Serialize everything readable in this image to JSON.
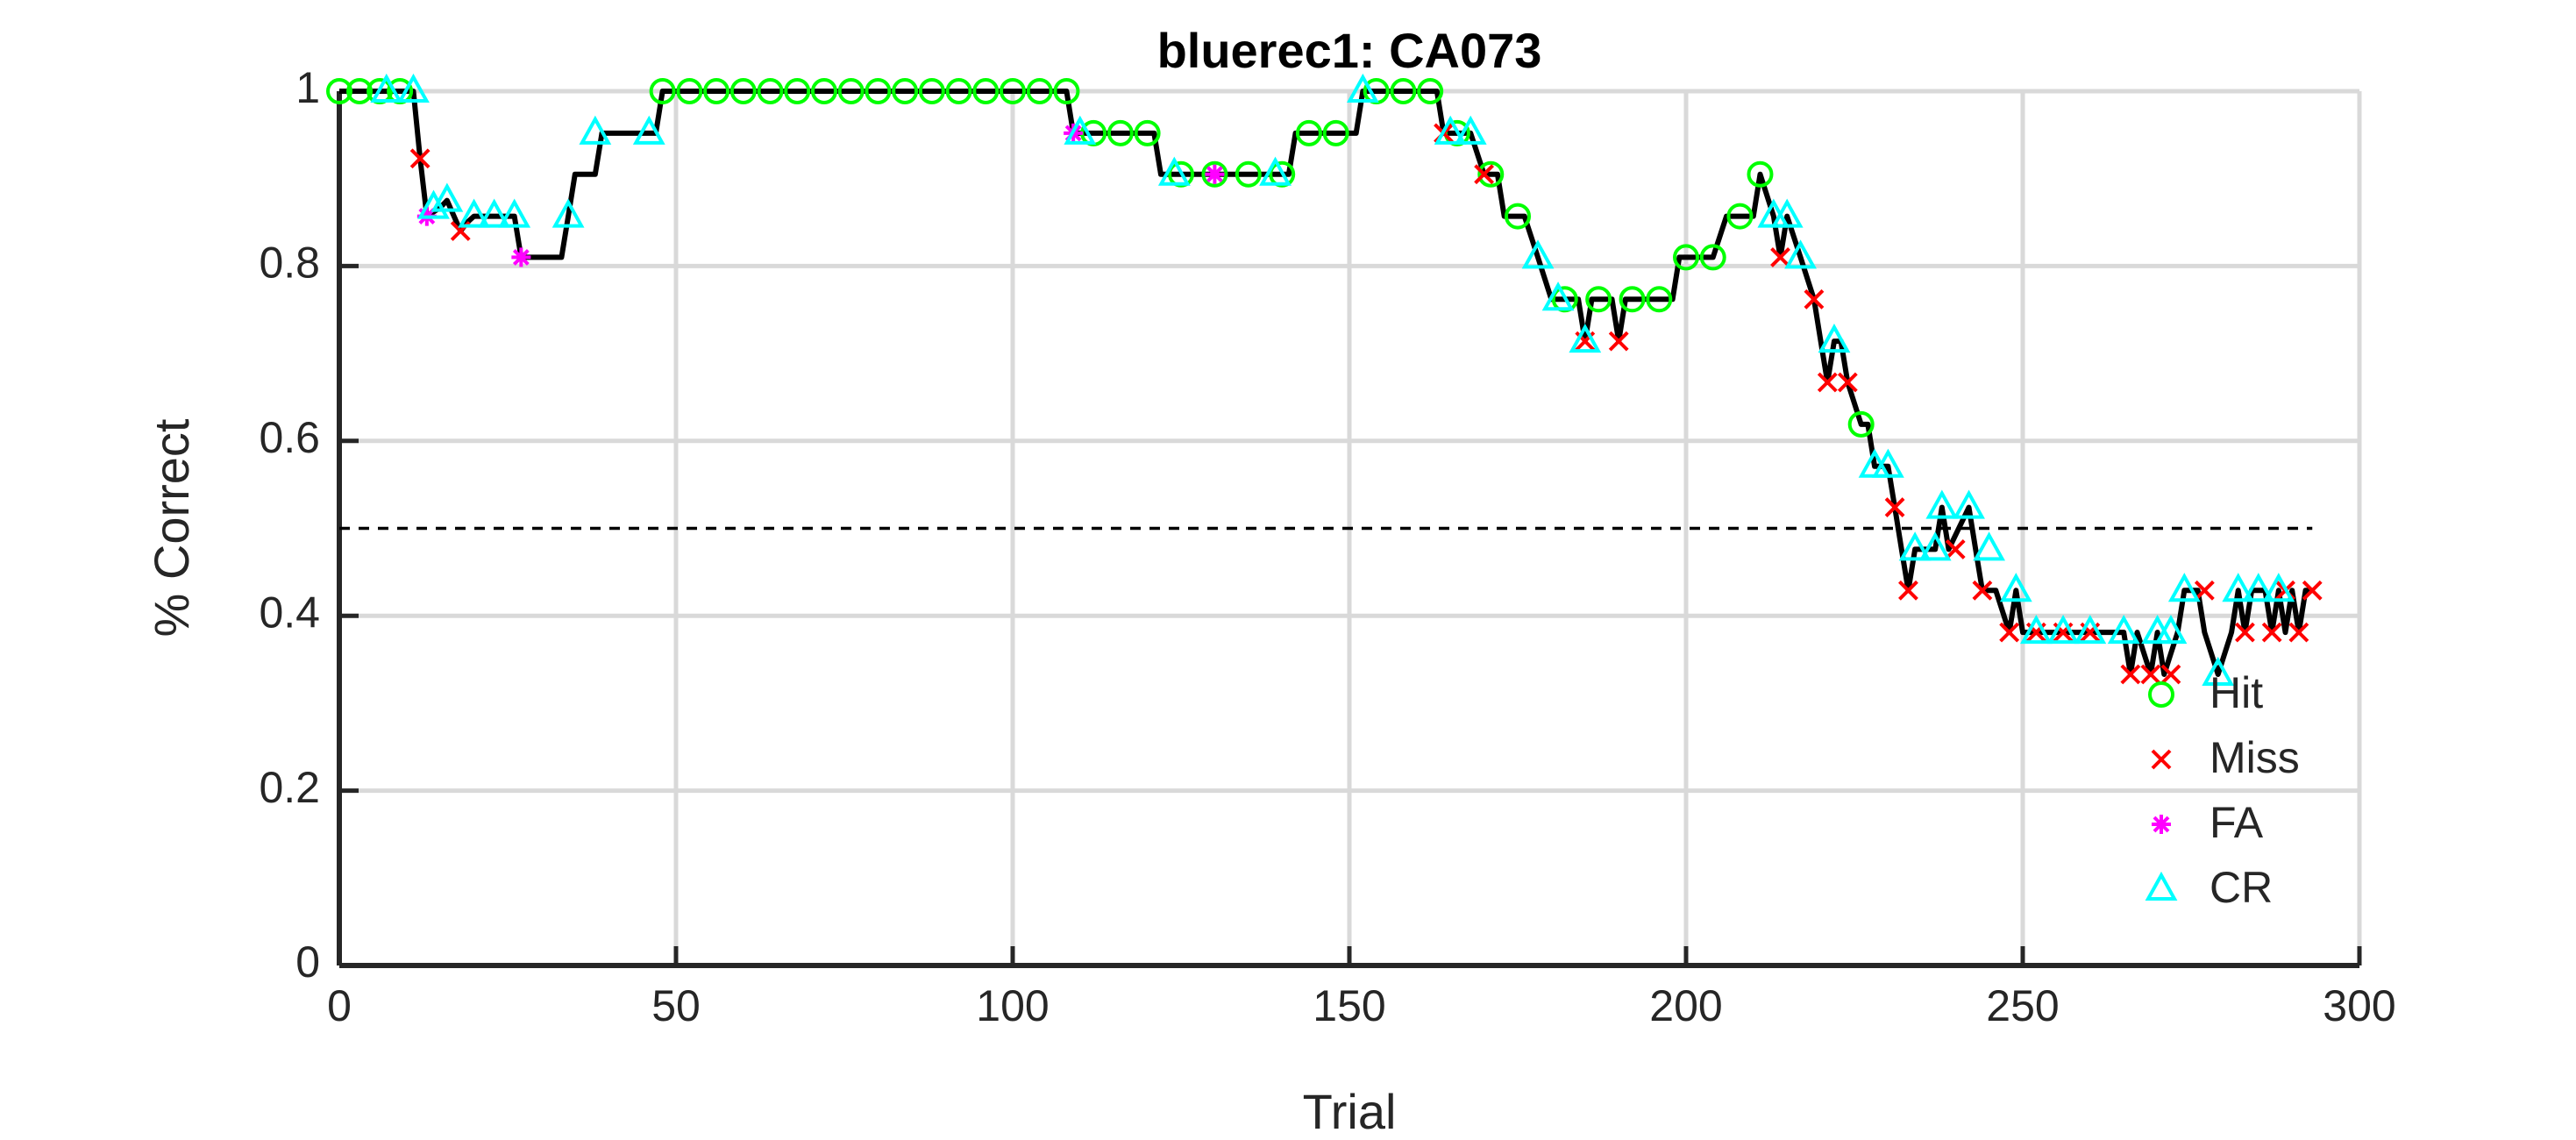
{
  "chart_data": {
    "type": "line",
    "title": "bluerec1: CA073",
    "xlabel": "Trial",
    "ylabel": "% Correct",
    "xlim": [
      0,
      300
    ],
    "xticks": [
      0,
      50,
      100,
      150,
      200,
      250,
      300
    ],
    "ylim": [
      0,
      1
    ],
    "yticks": [
      0,
      0.2,
      0.4,
      0.6,
      0.8,
      1
    ],
    "grid": true,
    "legend": "southeast",
    "reference_line": 0.5,
    "series": [
      {
        "color": "#000000",
        "marker": "none",
        "x": [
          0,
          11,
          12,
          13,
          15,
          16,
          18,
          19,
          20,
          26,
          27,
          33,
          34,
          35,
          38,
          39,
          47,
          48,
          108,
          109,
          121,
          122,
          141,
          142,
          151,
          152,
          163,
          164,
          168,
          170,
          172,
          173,
          176,
          178,
          180,
          184,
          185,
          186,
          189,
          190,
          191,
          198,
          199,
          204,
          206,
          210,
          211,
          213,
          214,
          215,
          217,
          219,
          220,
          221,
          222,
          223,
          224,
          226,
          227,
          228,
          230,
          231,
          232,
          233,
          234,
          237,
          238,
          239,
          242,
          243,
          244,
          246,
          248,
          249,
          250,
          265,
          266,
          267,
          269,
          270,
          271,
          273,
          274,
          276,
          277,
          279,
          281,
          282,
          283,
          284,
          286,
          287,
          288,
          289,
          290,
          291,
          292,
          293
        ],
        "values": [
          1,
          1,
          0.923,
          0.857,
          0.867,
          0.875,
          0.84,
          0.85,
          0.857,
          0.857,
          0.81,
          0.81,
          0.857,
          0.905,
          0.905,
          0.952,
          0.952,
          1,
          1,
          0.952,
          0.952,
          0.905,
          0.905,
          0.952,
          0.952,
          1,
          1,
          0.952,
          0.952,
          0.905,
          0.905,
          0.857,
          0.857,
          0.81,
          0.762,
          0.762,
          0.714,
          0.762,
          0.762,
          0.714,
          0.762,
          0.762,
          0.81,
          0.81,
          0.857,
          0.857,
          0.905,
          0.857,
          0.81,
          0.857,
          0.81,
          0.762,
          0.714,
          0.667,
          0.714,
          0.714,
          0.667,
          0.619,
          0.619,
          0.571,
          0.571,
          0.524,
          0.476,
          0.429,
          0.476,
          0.476,
          0.524,
          0.476,
          0.524,
          0.476,
          0.429,
          0.429,
          0.381,
          0.429,
          0.381,
          0.381,
          0.333,
          0.381,
          0.333,
          0.381,
          0.333,
          0.381,
          0.429,
          0.429,
          0.381,
          0.333,
          0.381,
          0.429,
          0.381,
          0.429,
          0.429,
          0.381,
          0.429,
          0.381,
          0.429,
          0.381,
          0.429,
          0.429
        ]
      },
      {
        "name": "Hit",
        "color": "#00ff00",
        "marker": "circle",
        "x": [
          0,
          3,
          6,
          9,
          48,
          52,
          56,
          60,
          64,
          68,
          72,
          76,
          80,
          84,
          88,
          92,
          96,
          100,
          104,
          108,
          112,
          116,
          120,
          125,
          130,
          135,
          140,
          144,
          148,
          154,
          158,
          162,
          166,
          171,
          175,
          182,
          187,
          192,
          196,
          200,
          204,
          208,
          211,
          226
        ],
        "values": [
          1,
          1,
          1,
          1,
          1,
          1,
          1,
          1,
          1,
          1,
          1,
          1,
          1,
          1,
          1,
          1,
          1,
          1,
          1,
          1,
          0.952,
          0.952,
          0.952,
          0.905,
          0.905,
          0.905,
          0.905,
          0.952,
          0.952,
          1,
          1,
          1,
          0.952,
          0.905,
          0.857,
          0.762,
          0.762,
          0.762,
          0.762,
          0.81,
          0.81,
          0.857,
          0.905,
          0.619
        ]
      },
      {
        "name": "Miss",
        "color": "#ff0000",
        "marker": "x",
        "x": [
          12,
          18,
          164,
          170,
          185,
          190,
          214,
          219,
          221,
          224,
          231,
          233,
          240,
          244,
          248,
          252,
          256,
          260,
          266,
          269,
          272,
          277,
          283,
          287,
          289,
          291,
          293
        ],
        "values": [
          0.923,
          0.84,
          0.952,
          0.905,
          0.714,
          0.714,
          0.81,
          0.762,
          0.667,
          0.667,
          0.524,
          0.429,
          0.476,
          0.429,
          0.381,
          0.381,
          0.381,
          0.381,
          0.333,
          0.333,
          0.333,
          0.429,
          0.381,
          0.381,
          0.429,
          0.381,
          0.429
        ]
      },
      {
        "name": "FA",
        "color": "#ff00ff",
        "marker": "asterisk",
        "x": [
          13,
          27,
          109,
          130
        ],
        "values": [
          0.857,
          0.81,
          0.952,
          0.905
        ]
      },
      {
        "name": "CR",
        "color": "#00ffff",
        "marker": "triangle",
        "x": [
          7,
          11,
          14,
          16,
          20,
          23,
          26,
          34,
          38,
          46,
          110,
          124,
          139,
          152,
          165,
          168,
          178,
          181,
          185,
          213,
          215,
          217,
          222,
          228,
          230,
          234,
          237,
          238,
          242,
          245,
          249,
          252,
          256,
          260,
          265,
          270,
          272,
          274,
          279,
          282,
          285,
          288
        ],
        "values": [
          1,
          1,
          0.867,
          0.875,
          0.857,
          0.857,
          0.857,
          0.857,
          0.952,
          0.952,
          0.952,
          0.905,
          0.905,
          1,
          0.952,
          0.952,
          0.81,
          0.762,
          0.714,
          0.857,
          0.857,
          0.81,
          0.714,
          0.571,
          0.571,
          0.476,
          0.476,
          0.524,
          0.524,
          0.476,
          0.429,
          0.381,
          0.381,
          0.381,
          0.381,
          0.381,
          0.381,
          0.429,
          0.333,
          0.429,
          0.429,
          0.429
        ]
      }
    ]
  }
}
